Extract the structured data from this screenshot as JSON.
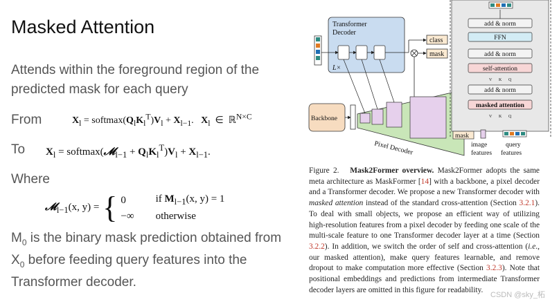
{
  "slide": {
    "title": "Masked Attention",
    "intro": "Attends within the foreground region of the predicted mask for each query",
    "from_label": "From",
    "to_label": "To",
    "where_label": "Where",
    "eq_from": "X_l = softmax(Q_l K_l^T) V_l + X_{l-1}.   X_l ∈ R^{N×C}",
    "eq_to": "X_l = softmax(M_{l-1} + Q_l K_l^T) V_l + X_{l-1}.",
    "eq_where_lhs": "M_{l-1}(x, y) =",
    "eq_where_case1_value": "0",
    "eq_where_case1_cond": "if M_{l-1}(x, y) = 1",
    "eq_where_case2_value": "−∞",
    "eq_where_case2_cond": "otherwise",
    "conclusion": "M0 is the binary mask prediction obtained from X0 before feeding query features into the Transformer decoder."
  },
  "figure": {
    "decoder_title_1": "Transformer",
    "decoder_title_2": "Decoder",
    "layers_label": "L×",
    "class_label": "class",
    "mask_label": "mask",
    "backbone_label": "Backbone",
    "pixel_decoder_label": "Pixel Decoder",
    "block_labels": [
      "add & norm",
      "FFN",
      "add & norm",
      "self-attention",
      "add & norm",
      "masked attention"
    ],
    "vkq": [
      "V",
      "K",
      "Q"
    ],
    "input_mask_label": "mask",
    "image_features_label": "image\nfeatures",
    "query_features_label": "query\nfeatures",
    "colors": {
      "query_teal": "#2e8b82",
      "query_orange": "#e07a22",
      "query_blue": "#1f6fb4",
      "decoder_fill": "#c9dcf0",
      "ffn_fill": "#d3ecf5",
      "attn_fill": "#f7d6d6",
      "addnorm_fill": "#f3f3f3",
      "backbone_fill": "#f7dcc0",
      "pixel_fill": "#c9e6b8",
      "feature_pink": "#e6d0ec",
      "class_fill": "#fbead2",
      "ref_red": "#c0392b"
    }
  },
  "caption": {
    "fig_label": "Figure 2.",
    "fig_title": "Mask2Former overview.",
    "lines": [
      {
        "parts": [
          {
            "t": " Mask2Former adopts the same meta architecture as MaskFormer ["
          },
          {
            "t": "14",
            "ref": true
          },
          {
            "t": "] with a backbone, a pixel decoder and a Transformer decoder.  We propose a new Transformer decoder with "
          },
          {
            "t": "masked attention",
            "em": true
          },
          {
            "t": " instead of the standard cross-attention (Section "
          },
          {
            "t": "3.2.1",
            "ref": true
          },
          {
            "t": "). To deal with small objects, we propose an efficient way of utilizing high-resolution features from a pixel decoder by feeding one scale of the multi-scale feature to one Transformer decoder layer at a time (Section "
          },
          {
            "t": "3.2.2",
            "ref": true
          },
          {
            "t": "). In addition, we switch the order of self and cross-attention ("
          },
          {
            "t": "i.e",
            "em": true
          },
          {
            "t": "., our masked attention), make query features learnable, and remove dropout to make computation more effective (Section "
          },
          {
            "t": "3.2.3",
            "ref": true
          },
          {
            "t": "). Note that positional embeddings and predictions from intermediate Transformer decoder layers are omitted in this figure for readability."
          }
        ]
      }
    ]
  },
  "watermark": "CSDN @sky_柘"
}
